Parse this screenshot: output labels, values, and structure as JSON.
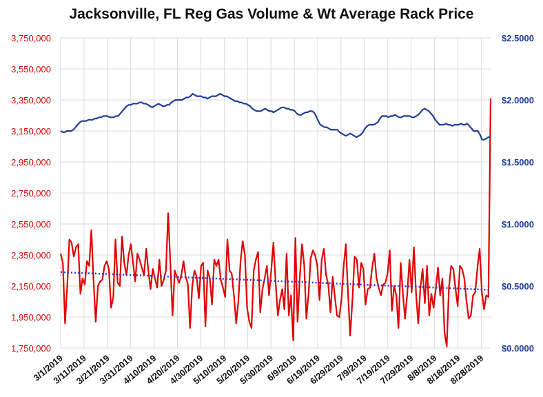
{
  "chart_data": {
    "type": "line",
    "title": "Jacksonville, FL Reg Gas Volume & Wt Average Rack Price",
    "x_tick_labels": [
      "3/1/2019",
      "3/11/2019",
      "3/21/2019",
      "3/31/2019",
      "4/10/2019",
      "4/20/2019",
      "4/30/2019",
      "5/10/2019",
      "5/20/2019",
      "5/30/2019",
      "6/9/2019",
      "6/19/2019",
      "6/29/2019",
      "7/9/2019",
      "7/19/2019",
      "7/29/2019",
      "8/8/2019",
      "8/18/2019",
      "8/28/2019"
    ],
    "x_range": [
      "3/1/2019",
      "9/1/2019"
    ],
    "y_left": {
      "ticks": [
        "1,750,000",
        "1,950,000",
        "2,150,000",
        "2,350,000",
        "2,550,000",
        "2,750,000",
        "2,950,000",
        "3,150,000",
        "3,350,000",
        "3,550,000",
        "3,750,000"
      ],
      "ylim": [
        1750000,
        3750000
      ],
      "color": "#e00000"
    },
    "y_right": {
      "ticks": [
        "$0.0000",
        "$0.5000",
        "$1.0000",
        "$1.5000",
        "$2.0000",
        "$2.5000"
      ],
      "ylim": [
        0,
        2.5
      ],
      "color": "#1f3d99"
    },
    "grid": true,
    "series": [
      {
        "axis": "left",
        "color": "#e00000",
        "values": [
          2360000,
          2300000,
          1910000,
          2150000,
          2450000,
          2430000,
          2340000,
          2400000,
          2420000,
          2100000,
          2200000,
          2160000,
          2310000,
          2280000,
          2510000,
          2180000,
          1920000,
          2150000,
          2180000,
          2190000,
          2280000,
          2310000,
          2260000,
          2010000,
          2080000,
          2450000,
          2170000,
          2150000,
          2470000,
          2300000,
          2220000,
          2350000,
          2420000,
          2300000,
          2180000,
          2360000,
          2320000,
          2270000,
          2220000,
          2390000,
          2250000,
          2130000,
          2260000,
          2200000,
          2140000,
          2320000,
          2150000,
          2190000,
          2250000,
          2620000,
          2300000,
          1960000,
          2250000,
          2210000,
          2170000,
          2220000,
          2310000,
          2210000,
          2160000,
          1880000,
          2150000,
          2250000,
          2210000,
          2070000,
          2280000,
          2300000,
          1890000,
          2250000,
          2200000,
          2030000,
          2320000,
          2280000,
          2320000,
          2190000,
          2140000,
          2080000,
          2450000,
          2250000,
          2230000,
          2090000,
          1910000,
          2050000,
          2310000,
          2440000,
          2350000,
          2010000,
          1920000,
          1880000,
          2250000,
          2320000,
          2370000,
          1980000,
          2130000,
          2200000,
          2280000,
          2090000,
          2250000,
          2430000,
          2170000,
          1960000,
          2060000,
          2130000,
          2000000,
          2360000,
          1960000,
          2090000,
          1800000,
          2460000,
          1920000,
          2200000,
          2420000,
          2290000,
          1940000,
          2100000,
          2330000,
          2380000,
          2350000,
          2280000,
          2060000,
          2320000,
          2390000,
          2220000,
          2160000,
          1980000,
          2210000,
          2080000,
          1960000,
          1950000,
          2060000,
          2280000,
          2420000,
          2100000,
          1830000,
          2060000,
          2340000,
          2320000,
          2140000,
          2300000,
          2260000,
          2030000,
          2130000,
          2140000,
          2270000,
          2360000,
          2200000,
          2140000,
          2090000,
          2160000,
          2170000,
          2230000,
          2380000,
          1990000,
          2150000,
          2090000,
          1880000,
          2300000,
          2100000,
          1940000,
          2100000,
          2320000,
          2110000,
          2400000,
          2100000,
          1910000,
          2140000,
          2260000,
          2040000,
          2280000,
          1960000,
          2100000,
          2010000,
          2130000,
          2270000,
          2090000,
          2200000,
          1850000,
          1760000,
          2140000,
          2280000,
          2260000,
          2130000,
          2020000,
          2280000,
          2260000,
          2200000,
          2050000,
          1940000,
          1960000,
          2090000,
          2110000,
          2270000,
          2390000,
          2110000,
          2000000,
          2090000,
          2080000,
          3360000
        ]
      },
      {
        "axis": "right",
        "color": "#1f3d99",
        "values": [
          1.75,
          1.74,
          1.74,
          1.75,
          1.75,
          1.75,
          1.76,
          1.78,
          1.8,
          1.82,
          1.83,
          1.83,
          1.83,
          1.84,
          1.84,
          1.84,
          1.85,
          1.85,
          1.86,
          1.86,
          1.87,
          1.87,
          1.87,
          1.86,
          1.86,
          1.86,
          1.87,
          1.87,
          1.89,
          1.91,
          1.93,
          1.95,
          1.96,
          1.96,
          1.97,
          1.97,
          1.97,
          1.98,
          1.98,
          1.97,
          1.97,
          1.96,
          1.95,
          1.94,
          1.95,
          1.96,
          1.97,
          1.96,
          1.95,
          1.95,
          1.96,
          1.96,
          1.98,
          1.99,
          2,
          2,
          2,
          2,
          2.01,
          2.02,
          2.02,
          2.03,
          2.05,
          2.04,
          2.03,
          2.03,
          2.03,
          2.02,
          2.02,
          2.01,
          2.02,
          2.03,
          2.03,
          2.03,
          2.04,
          2.05,
          2.04,
          2.03,
          2.03,
          2.02,
          2.01,
          2,
          1.99,
          1.99,
          1.98,
          1.98,
          1.97,
          1.97,
          1.96,
          1.95,
          1.93,
          1.92,
          1.91,
          1.91,
          1.91,
          1.92,
          1.93,
          1.92,
          1.91,
          1.91,
          1.9,
          1.91,
          1.92,
          1.93,
          1.94,
          1.94,
          1.93,
          1.93,
          1.92,
          1.92,
          1.91,
          1.89,
          1.88,
          1.88,
          1.89,
          1.9,
          1.9,
          1.91,
          1.91,
          1.9,
          1.87,
          1.83,
          1.8,
          1.79,
          1.78,
          1.78,
          1.77,
          1.76,
          1.76,
          1.76,
          1.76,
          1.74,
          1.73,
          1.72,
          1.71,
          1.72,
          1.73,
          1.72,
          1.71,
          1.7,
          1.71,
          1.72,
          1.74,
          1.77,
          1.79,
          1.8,
          1.8,
          1.8,
          1.81,
          1.82,
          1.85,
          1.87,
          1.87,
          1.87,
          1.86,
          1.87,
          1.87,
          1.88,
          1.87,
          1.86,
          1.86,
          1.87,
          1.87,
          1.87,
          1.87,
          1.86,
          1.86,
          1.87,
          1.88,
          1.9,
          1.92,
          1.93,
          1.92,
          1.91,
          1.89,
          1.87,
          1.84,
          1.82,
          1.8,
          1.8,
          1.8,
          1.81,
          1.8,
          1.8,
          1.79,
          1.8,
          1.8,
          1.8,
          1.81,
          1.8,
          1.8,
          1.81,
          1.79,
          1.77,
          1.75,
          1.75,
          1.75,
          1.72,
          1.68,
          1.68,
          1.69,
          1.7,
          1.7
        ]
      },
      {
        "axis": "left",
        "color": "#1f3dcc",
        "style": "dotted-trend",
        "values": [
          2240000,
          2125000
        ]
      }
    ]
  }
}
